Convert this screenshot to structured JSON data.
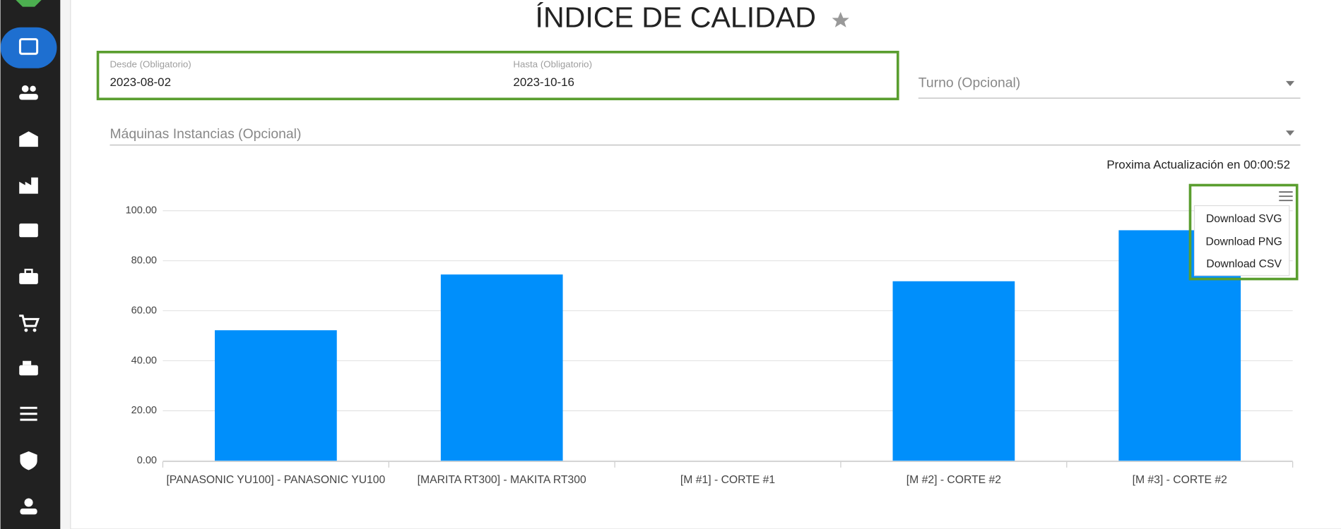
{
  "header": {
    "title": "ÍNDICE DE CALIDAD"
  },
  "filters": {
    "desde": {
      "label": "Desde (Obligatorio)",
      "value": "2023-08-02"
    },
    "hasta": {
      "label": "Hasta (Obligatorio)",
      "value": "2023-10-16"
    },
    "turno": "Turno (Opcional)",
    "maquinas": "Máquinas Instancias (Opcional)"
  },
  "countdown": "Proxima Actualización en 00:00:52",
  "chart_data": {
    "type": "bar",
    "categories": [
      "[PANASONIC YU100] - PANASONIC YU100",
      "[MARITA RT300] - MAKITA RT300",
      "[M #1] - CORTE #1",
      "[M #2] - CORTE #2",
      "[M #3] - CORTE #2"
    ],
    "values": [
      52.2,
      74.5,
      0,
      71.8,
      92.2
    ],
    "color": "#008ffb",
    "ylim": [
      0,
      100
    ],
    "yticks": [
      {
        "value": 0,
        "label": "0.00"
      },
      {
        "value": 20,
        "label": "20.00"
      },
      {
        "value": 40,
        "label": "40.00"
      },
      {
        "value": 60,
        "label": "60.00"
      },
      {
        "value": 80,
        "label": "80.00"
      },
      {
        "value": 100,
        "label": "100.00"
      }
    ],
    "grid": true
  },
  "export_menu": [
    "Download SVG",
    "Download PNG",
    "Download CSV"
  ]
}
